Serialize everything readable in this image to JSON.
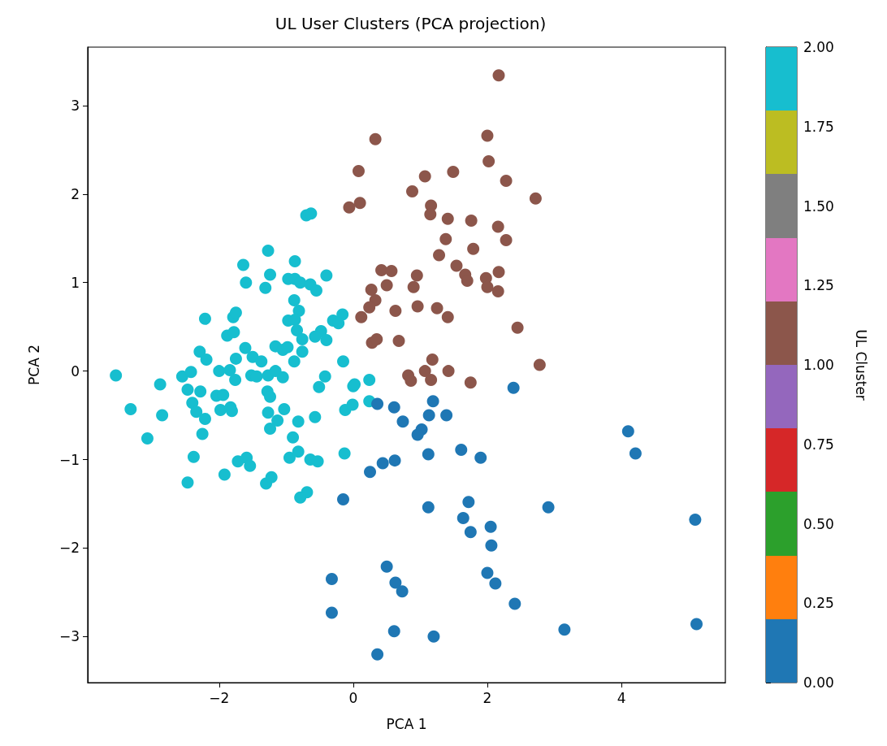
{
  "chart_data": {
    "type": "scatter",
    "title": "UL User Clusters (PCA projection)",
    "xlabel": "PCA 1",
    "ylabel": "PCA 2",
    "clabel": "UL Cluster",
    "marker": "circle",
    "x": [
      -1.27,
      -0.87,
      -1.64,
      -1.24,
      -1.6,
      -1.31,
      -0.97,
      -0.87,
      -0.79,
      -0.64,
      -0.55,
      -0.4,
      -0.88,
      -0.81,
      -0.97,
      -0.87,
      -0.84,
      -0.76,
      -0.76,
      -0.88,
      -0.3,
      -0.16,
      -0.22,
      -0.48,
      -0.57,
      -0.4,
      -2.21,
      -1.79,
      -1.75,
      -1.88,
      -1.78,
      -1.61,
      -1.16,
      -1.05,
      -0.98,
      -2.29,
      -2.19,
      -1.75,
      -1.5,
      -1.37,
      -0.15,
      -3.54,
      -2.88,
      -2.55,
      -2.42,
      -2.0,
      -1.84,
      -1.76,
      -1.52,
      -1.44,
      -1.27,
      -1.16,
      -1.05,
      -2.47,
      -2.28,
      -2.04,
      -1.94,
      -1.28,
      -1.24,
      -0.42,
      -0.51,
      0.0,
      0.02,
      0.24,
      0.24,
      -3.32,
      -2.85,
      -2.4,
      -2.34,
      -2.21,
      -1.98,
      -1.83,
      -1.81,
      -1.27,
      -1.13,
      -1.03,
      -1.24,
      -0.82,
      -0.57,
      -0.12,
      -0.01,
      -3.07,
      -2.25,
      -0.9,
      -2.38,
      -1.72,
      -1.59,
      -1.54,
      -0.95,
      -0.82,
      -0.64,
      -0.53,
      -0.13,
      -2.47,
      -1.92,
      -1.3,
      -1.22,
      -0.69,
      -0.79,
      -0.7,
      -0.63,
      2.17,
      0.33,
      2.0,
      0.08,
      2.02,
      1.07,
      1.49,
      2.28,
      0.88,
      2.72,
      -0.06,
      0.1,
      1.16,
      1.15,
      1.41,
      1.76,
      2.16,
      2.28,
      1.38,
      1.79,
      1.28,
      1.54,
      0.42,
      0.57,
      0.5,
      0.27,
      0.95,
      0.9,
      1.67,
      1.7,
      1.98,
      2.17,
      2.0,
      2.16,
      0.33,
      0.24,
      0.12,
      0.63,
      0.96,
      1.25,
      1.41,
      2.45,
      0.28,
      0.35,
      0.68,
      1.18,
      1.42,
      0.82,
      0.86,
      1.07,
      1.16,
      1.75,
      2.78,
      2.39,
      0.36,
      0.61,
      1.19,
      0.74,
      1.13,
      1.39,
      1.02,
      0.96,
      4.1,
      4.21,
      1.12,
      1.61,
      1.9,
      0.25,
      0.44,
      0.62,
      -0.15,
      1.12,
      1.72,
      2.91,
      5.1,
      1.64,
      2.05,
      1.75,
      2.06,
      0.5,
      -0.32,
      0.63,
      0.73,
      2.0,
      2.12,
      2.41,
      -0.32,
      0.61,
      1.2,
      3.15,
      5.12,
      0.36
    ],
    "values": [
      1.36,
      1.24,
      1.2,
      1.09,
      1.0,
      0.94,
      1.04,
      1.04,
      1.0,
      0.98,
      0.91,
      1.08,
      0.8,
      0.68,
      0.57,
      0.58,
      0.46,
      0.36,
      0.22,
      0.11,
      0.57,
      0.64,
      0.54,
      0.45,
      0.39,
      0.35,
      0.59,
      0.61,
      0.66,
      0.4,
      0.44,
      0.26,
      0.28,
      0.24,
      0.27,
      0.22,
      0.13,
      0.14,
      0.16,
      0.11,
      0.11,
      -0.05,
      -0.15,
      -0.06,
      -0.01,
      0.0,
      0.01,
      -0.1,
      -0.05,
      -0.06,
      -0.05,
      0.0,
      -0.07,
      -0.21,
      -0.23,
      -0.28,
      -0.27,
      -0.23,
      -0.29,
      -0.06,
      -0.18,
      -0.17,
      -0.15,
      -0.1,
      -0.34,
      -0.43,
      -0.5,
      -0.36,
      -0.46,
      -0.54,
      -0.44,
      -0.41,
      -0.45,
      -0.47,
      -0.56,
      -0.43,
      -0.65,
      -0.57,
      -0.52,
      -0.44,
      -0.38,
      -0.76,
      -0.71,
      -0.75,
      -0.97,
      -1.02,
      -0.98,
      -1.07,
      -0.98,
      -0.91,
      -1.0,
      -1.02,
      -0.93,
      -1.26,
      -1.17,
      -1.27,
      -1.2,
      -1.37,
      -1.43,
      1.76,
      1.78,
      3.34,
      2.62,
      2.66,
      2.26,
      2.37,
      2.2,
      2.25,
      2.15,
      2.03,
      1.95,
      1.85,
      1.9,
      1.87,
      1.77,
      1.72,
      1.7,
      1.63,
      1.48,
      1.49,
      1.38,
      1.31,
      1.19,
      1.14,
      1.13,
      0.97,
      0.92,
      1.08,
      0.95,
      1.09,
      1.02,
      1.05,
      1.12,
      0.95,
      0.9,
      0.8,
      0.72,
      0.61,
      0.68,
      0.73,
      0.71,
      0.61,
      0.49,
      0.32,
      0.36,
      0.34,
      0.13,
      0.0,
      -0.05,
      -0.11,
      0.0,
      -0.1,
      -0.13,
      0.07,
      -0.19,
      -0.37,
      -0.41,
      -0.34,
      -0.57,
      -0.5,
      -0.5,
      -0.66,
      -0.72,
      -0.68,
      -0.93,
      -0.94,
      -0.89,
      -0.98,
      -1.14,
      -1.04,
      -1.01,
      -1.45,
      -1.54,
      -1.48,
      -1.54,
      -1.68,
      -1.66,
      -1.76,
      -1.82,
      -1.97,
      -2.21,
      -2.35,
      -2.39,
      -2.49,
      -2.28,
      -2.4,
      -2.63,
      -2.73,
      -2.94,
      -3.0,
      -2.92,
      -2.86,
      -3.2
    ],
    "cvalues": [
      2,
      2,
      2,
      2,
      2,
      2,
      2,
      2,
      2,
      2,
      2,
      2,
      2,
      2,
      2,
      2,
      2,
      2,
      2,
      2,
      2,
      2,
      2,
      2,
      2,
      2,
      2,
      2,
      2,
      2,
      2,
      2,
      2,
      2,
      2,
      2,
      2,
      2,
      2,
      2,
      2,
      2,
      2,
      2,
      2,
      2,
      2,
      2,
      2,
      2,
      2,
      2,
      2,
      2,
      2,
      2,
      2,
      2,
      2,
      2,
      2,
      2,
      2,
      2,
      2,
      2,
      2,
      2,
      2,
      2,
      2,
      2,
      2,
      2,
      2,
      2,
      2,
      2,
      2,
      2,
      2,
      2,
      2,
      2,
      2,
      2,
      2,
      2,
      2,
      2,
      2,
      2,
      2,
      2,
      2,
      2,
      2,
      2,
      2,
      2,
      2,
      1,
      1,
      1,
      1,
      1,
      1,
      1,
      1,
      1,
      1,
      1,
      1,
      1,
      1,
      1,
      1,
      1,
      1,
      1,
      1,
      1,
      1,
      1,
      1,
      1,
      1,
      1,
      1,
      1,
      1,
      1,
      1,
      1,
      1,
      1,
      1,
      1,
      1,
      1,
      1,
      1,
      1,
      1,
      1,
      1,
      1,
      1,
      1,
      1,
      1,
      1,
      1,
      1,
      0,
      0,
      0,
      0,
      0,
      0,
      0,
      0,
      0,
      0,
      0,
      0,
      0,
      0,
      0,
      0,
      0,
      0,
      0,
      0,
      0,
      0,
      0,
      0,
      0,
      0,
      0,
      0,
      0,
      0,
      0,
      0,
      0,
      0,
      0,
      0,
      0,
      0,
      0
    ],
    "xlim": [
      -3.96,
      5.55
    ],
    "ylim": [
      -3.52,
      3.66
    ],
    "xticks": [
      {
        "value": -2,
        "label": "−2"
      },
      0,
      2,
      4
    ],
    "yticks": [
      {
        "value": -3,
        "label": "−3"
      },
      {
        "value": -2,
        "label": "−2"
      },
      {
        "value": -1,
        "label": "−1"
      },
      0,
      1,
      2,
      3
    ],
    "clim": [
      0,
      2
    ],
    "cticks": [
      {
        "value": 0,
        "label": "0.00"
      },
      {
        "value": 0.25,
        "label": "0.25"
      },
      {
        "value": 0.5,
        "label": "0.50"
      },
      {
        "value": 0.75,
        "label": "0.75"
      },
      {
        "value": 1,
        "label": "1.00"
      },
      {
        "value": 1.25,
        "label": "1.25"
      },
      {
        "value": 1.5,
        "label": "1.50"
      },
      {
        "value": 1.75,
        "label": "1.75"
      },
      {
        "value": 2,
        "label": "2.00"
      }
    ]
  }
}
